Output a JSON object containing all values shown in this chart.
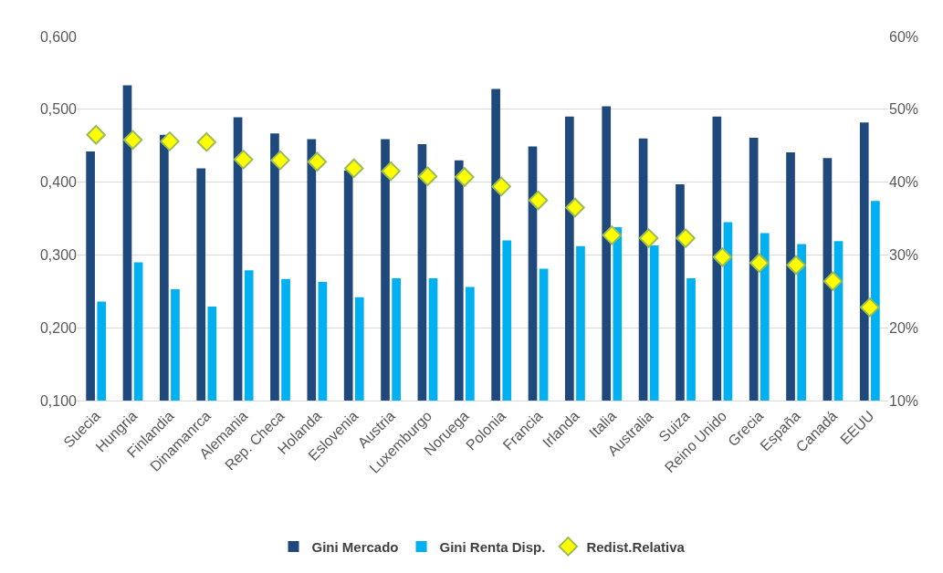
{
  "chart_data": {
    "type": "bar",
    "categories": [
      "Suecia",
      "Hungria",
      "Finlandia",
      "Dinamanrca",
      "Alemania",
      "Rep. Checa",
      "Holanda",
      "Eslovenia",
      "Austria",
      "Luxemburgo",
      "Noruega",
      "Polonia",
      "Francia",
      "Irlanda",
      "Italia",
      "Australia",
      "Suiza",
      "Reino Unido",
      "Grecia",
      "España",
      "Canadá",
      "EEUU"
    ],
    "series": [
      {
        "name": "Gini Mercado",
        "color": "#1f497d",
        "values": [
          0.442,
          0.533,
          0.465,
          0.419,
          0.489,
          0.467,
          0.459,
          0.416,
          0.459,
          0.452,
          0.43,
          0.528,
          0.449,
          0.49,
          0.504,
          0.46,
          0.397,
          0.49,
          0.461,
          0.441,
          0.433,
          0.482
        ]
      },
      {
        "name": "Gini Renta Disp.",
        "color": "#00b0f0",
        "values": [
          0.236,
          0.29,
          0.253,
          0.229,
          0.279,
          0.267,
          0.263,
          0.242,
          0.268,
          0.268,
          0.256,
          0.32,
          0.281,
          0.312,
          0.338,
          0.313,
          0.268,
          0.345,
          0.33,
          0.315,
          0.319,
          0.374
        ]
      },
      {
        "name": "Redist.Relativa",
        "type": "scatter",
        "axis": "y2",
        "color": "#ffff00",
        "values": [
          46.5,
          45.8,
          45.6,
          45.5,
          43.1,
          43.0,
          42.8,
          41.9,
          41.5,
          40.8,
          40.7,
          39.4,
          37.5,
          36.5,
          32.7,
          32.3,
          32.3,
          29.7,
          28.9,
          28.6,
          26.4,
          22.8
        ]
      }
    ],
    "ylim": [
      0.1,
      0.6
    ],
    "yticks": [
      {
        "value": 0.1,
        "label": "0,100"
      },
      {
        "value": 0.2,
        "label": "0,200"
      },
      {
        "value": 0.3,
        "label": "0,300"
      },
      {
        "value": 0.4,
        "label": "0,400"
      },
      {
        "value": 0.5,
        "label": "0,500"
      },
      {
        "value": 0.6,
        "label": "0,600"
      }
    ],
    "y2lim": [
      10,
      60
    ],
    "y2ticks": [
      {
        "value": 10,
        "label": "10%"
      },
      {
        "value": 20,
        "label": "20%"
      },
      {
        "value": 30,
        "label": "30%"
      },
      {
        "value": 40,
        "label": "40%"
      },
      {
        "value": 50,
        "label": "50%"
      },
      {
        "value": 60,
        "label": "60%"
      }
    ],
    "grid": "y",
    "legend": "bottom",
    "marker": "diamond"
  }
}
